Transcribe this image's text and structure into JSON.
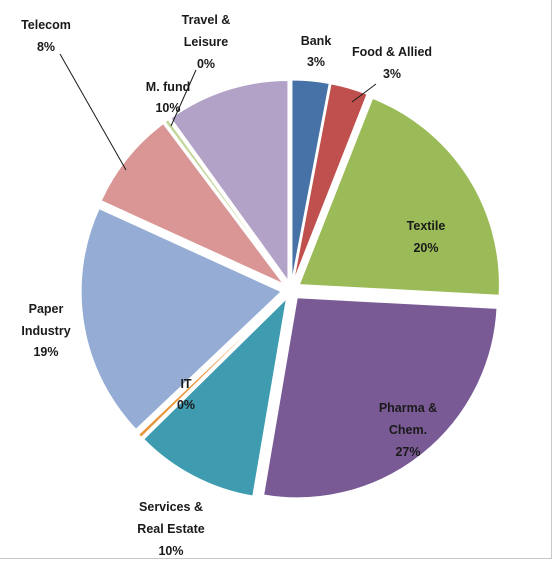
{
  "chart_data": {
    "type": "pie",
    "exploded": true,
    "legend": "none",
    "start_angle_deg": 0,
    "direction": "clockwise",
    "slices": [
      {
        "label": "Bank",
        "value": 3,
        "percent_label": "3%",
        "color": "#4672a8"
      },
      {
        "label": "Food & Allied",
        "value": 3,
        "percent_label": "3%",
        "color": "#c0504d"
      },
      {
        "label": "Textile",
        "value": 20,
        "percent_label": "20%",
        "color": "#9bbb59"
      },
      {
        "label": "Pharma & Chem.",
        "value": 27,
        "percent_label": "27%",
        "color": "#7a5a95"
      },
      {
        "label": "Services & Real Estate",
        "value": 10,
        "percent_label": "10%",
        "color": "#3e9bb0"
      },
      {
        "label": "IT",
        "value": 0.3,
        "percent_label": "0%",
        "color": "#e8963c"
      },
      {
        "label": "Paper Industry",
        "value": 19,
        "percent_label": "19%",
        "color": "#95acd4"
      },
      {
        "label": "Telecom",
        "value": 8,
        "percent_label": "8%",
        "color": "#d99694"
      },
      {
        "label": "Travel & Leisure",
        "value": 0.3,
        "percent_label": "0%",
        "color": "#c3d69b"
      },
      {
        "label": "M. fund",
        "value": 10,
        "percent_label": "10%",
        "color": "#b3a2c7"
      }
    ]
  }
}
